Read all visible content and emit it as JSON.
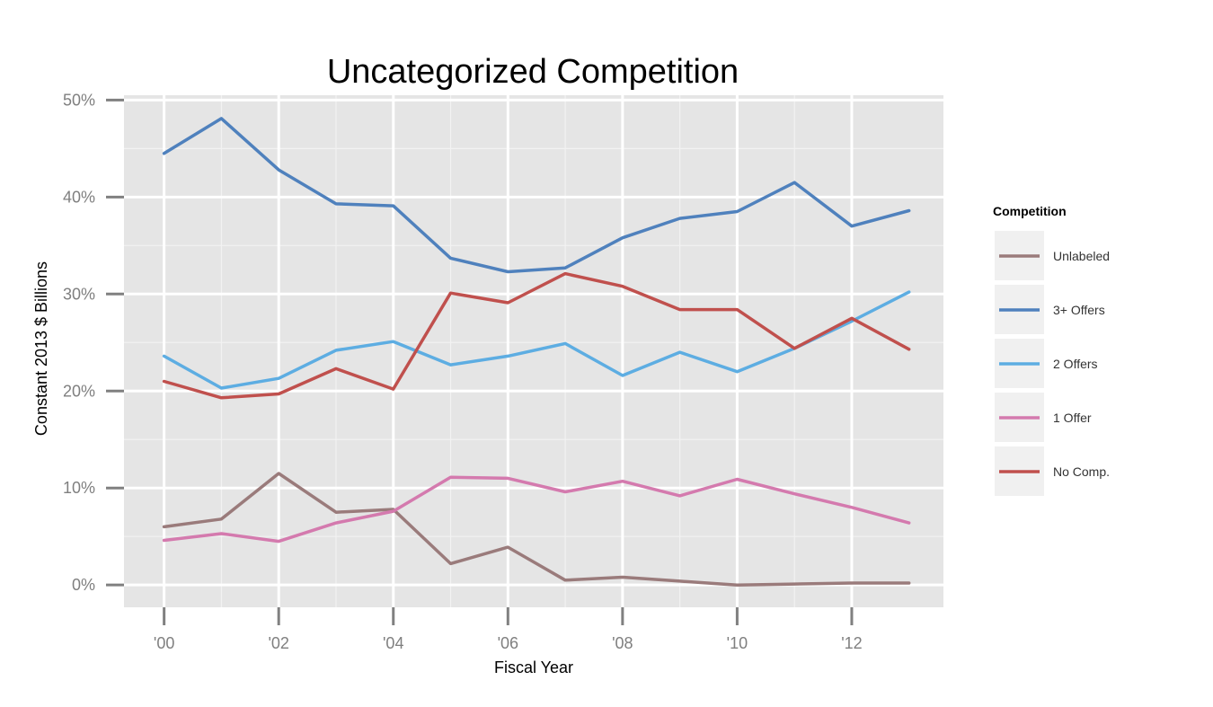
{
  "chart_data": {
    "type": "line",
    "title": "Uncategorized Competition",
    "xlabel": "Fiscal Year",
    "ylabel": "Constant 2013 $ Billions",
    "x": [
      2000,
      2001,
      2002,
      2003,
      2004,
      2005,
      2006,
      2007,
      2008,
      2009,
      2010,
      2011,
      2012,
      2013
    ],
    "x_ticks": [
      2000,
      2002,
      2004,
      2006,
      2008,
      2010,
      2012
    ],
    "x_tick_labels": [
      "'00",
      "'02",
      "'04",
      "'06",
      "'08",
      "'10",
      "'12"
    ],
    "xlim": [
      1999.3,
      2013.6
    ],
    "ylim": [
      -0.023,
      0.505
    ],
    "y_ticks": [
      0,
      0.1,
      0.2,
      0.3,
      0.4,
      0.5
    ],
    "y_tick_labels": [
      "0%",
      "10%",
      "20%",
      "30%",
      "40%",
      "50%"
    ],
    "grid": true,
    "legend_title": "Competition",
    "legend_position": "right",
    "series": [
      {
        "name": "Unlabeled",
        "color": "#9a7b7b",
        "values": [
          0.06,
          0.068,
          0.115,
          0.075,
          0.078,
          0.022,
          0.039,
          0.005,
          0.008,
          0.004,
          0.0,
          0.001,
          0.002,
          0.002
        ]
      },
      {
        "name": "3+ Offers",
        "color": "#4f81bd",
        "values": [
          0.445,
          0.481,
          0.428,
          0.393,
          0.391,
          0.337,
          0.323,
          0.327,
          0.358,
          0.378,
          0.385,
          0.415,
          0.37,
          0.386
        ]
      },
      {
        "name": "2 Offers",
        "color": "#5dade2",
        "values": [
          0.236,
          0.203,
          0.213,
          0.242,
          0.251,
          0.227,
          0.236,
          0.249,
          0.216,
          0.24,
          0.22,
          0.244,
          0.272,
          0.302
        ]
      },
      {
        "name": "1 Offer",
        "color": "#d47aae",
        "values": [
          0.046,
          0.053,
          0.045,
          0.064,
          0.076,
          0.111,
          0.11,
          0.096,
          0.107,
          0.092,
          0.109,
          0.094,
          0.08,
          0.064
        ]
      },
      {
        "name": "No Comp.",
        "color": "#c0504d",
        "values": [
          0.21,
          0.193,
          0.197,
          0.223,
          0.202,
          0.301,
          0.291,
          0.321,
          0.308,
          0.284,
          0.284,
          0.244,
          0.275,
          0.243
        ]
      }
    ]
  }
}
